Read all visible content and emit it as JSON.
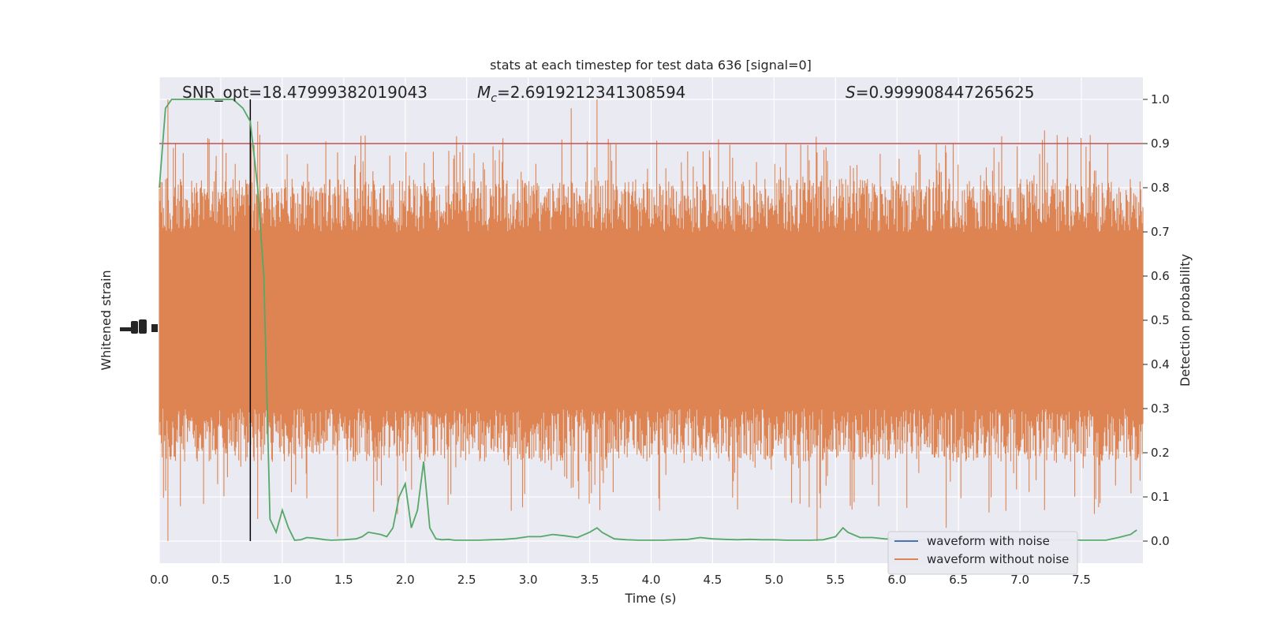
{
  "chart_data": {
    "type": "line",
    "title": "stats at each timestep for test data 636 [signal=0]",
    "xlabel": "Time (s)",
    "ylabel_left": "Whitened strain",
    "ylabel_right": "Detection probability",
    "xlim": [
      0.0,
      8.0
    ],
    "ylim_right": [
      -0.05,
      1.05
    ],
    "x_ticks": [
      "0.0",
      "0.5",
      "1.0",
      "1.5",
      "2.0",
      "2.5",
      "3.0",
      "3.5",
      "4.0",
      "4.5",
      "5.0",
      "5.5",
      "6.0",
      "6.5",
      "7.0",
      "7.5"
    ],
    "y_ticks_right": [
      "0.0",
      "0.1",
      "0.2",
      "0.3",
      "0.4",
      "0.5",
      "0.6",
      "0.7",
      "0.8",
      "0.9",
      "1.0"
    ],
    "grid": true,
    "annotations": {
      "snr": "SNR_opt=18.47999382019043",
      "mc_symbol": "M",
      "mc_sub": "c",
      "mc_value": "=2.6919212341308594",
      "s_symbol": "S",
      "s_value": "=0.999908447265625"
    },
    "threshold": 0.9,
    "vline_x": 0.74,
    "legend": {
      "placement": "lower right",
      "entries": [
        {
          "label": "waveform with noise",
          "color": "#4c72b0"
        },
        {
          "label": "waveform without noise",
          "color": "#dd8452"
        }
      ]
    },
    "series": [
      {
        "name": "waveform without noise",
        "color": "#dd8452",
        "style": "dense noise band",
        "band_range": [
          0.3,
          0.7
        ],
        "peaks": [
          0.8,
          1.0,
          0.93,
          0.9,
          0.91,
          0.92
        ],
        "troughs": [
          0.0,
          0.05,
          0.01,
          0.02,
          0.03
        ]
      },
      {
        "color": "#55a868",
        "x": [
          0.0,
          0.05,
          0.1,
          0.15,
          0.2,
          0.3,
          0.4,
          0.5,
          0.6,
          0.68,
          0.74,
          0.8,
          0.85,
          0.9,
          0.95,
          1.0,
          1.05,
          1.1,
          1.15,
          1.2,
          1.25,
          1.3,
          1.35,
          1.4,
          1.5,
          1.6,
          1.65,
          1.7,
          1.8,
          1.85,
          1.9,
          1.95,
          2.0,
          2.05,
          2.1,
          2.15,
          2.2,
          2.25,
          2.3,
          2.35,
          2.4,
          2.5,
          2.6,
          2.7,
          2.8,
          2.9,
          3.0,
          3.1,
          3.2,
          3.3,
          3.4,
          3.5,
          3.56,
          3.6,
          3.7,
          3.8,
          3.9,
          4.0,
          4.1,
          4.2,
          4.3,
          4.4,
          4.5,
          4.6,
          4.7,
          4.8,
          4.9,
          5.0,
          5.1,
          5.2,
          5.3,
          5.4,
          5.5,
          5.56,
          5.6,
          5.7,
          5.8,
          5.9,
          6.0,
          6.1,
          6.2,
          6.3,
          6.4,
          6.5,
          6.6,
          6.7,
          6.8,
          6.9,
          7.0,
          7.1,
          7.2,
          7.3,
          7.4,
          7.5,
          7.6,
          7.7,
          7.8,
          7.9,
          7.95
        ],
        "values": [
          0.8,
          0.98,
          1.0,
          1.0,
          1.0,
          1.0,
          1.0,
          1.0,
          1.0,
          0.98,
          0.95,
          0.8,
          0.6,
          0.05,
          0.02,
          0.07,
          0.03,
          0.002,
          0.003,
          0.008,
          0.007,
          0.005,
          0.003,
          0.002,
          0.003,
          0.005,
          0.01,
          0.02,
          0.015,
          0.01,
          0.03,
          0.1,
          0.13,
          0.03,
          0.07,
          0.18,
          0.03,
          0.005,
          0.003,
          0.004,
          0.002,
          0.002,
          0.002,
          0.003,
          0.004,
          0.006,
          0.01,
          0.01,
          0.015,
          0.012,
          0.008,
          0.02,
          0.03,
          0.02,
          0.005,
          0.003,
          0.002,
          0.002,
          0.002,
          0.003,
          0.004,
          0.008,
          0.005,
          0.004,
          0.003,
          0.004,
          0.003,
          0.003,
          0.002,
          0.002,
          0.002,
          0.003,
          0.01,
          0.03,
          0.02,
          0.008,
          0.008,
          0.005,
          0.004,
          0.003,
          0.003,
          0.003,
          0.004,
          0.003,
          0.003,
          0.003,
          0.002,
          0.003,
          0.003,
          0.003,
          0.002,
          0.003,
          0.003,
          0.002,
          0.002,
          0.002,
          0.008,
          0.015,
          0.025
        ]
      }
    ]
  }
}
